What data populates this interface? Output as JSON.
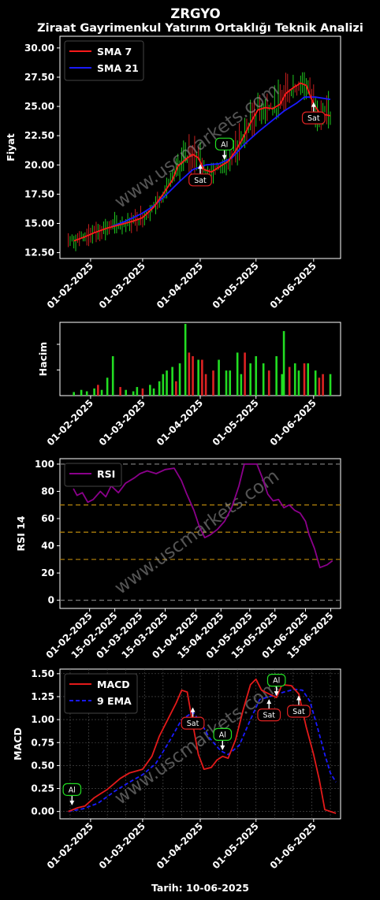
{
  "header": {
    "ticker": "ZRGYO",
    "subtitle": "Ziraat Gayrimenkul Yatırım Ortaklığı Teknik Analizi",
    "footer": "Tarih: 10-06-2025",
    "watermark": "www.uscmarkets.com"
  },
  "colors": {
    "background": "#000000",
    "sma7": "#ff1a1a",
    "sma21": "#1a1aff",
    "rsi": "#8b008b",
    "macd": "#e31a1a",
    "ema9": "#1a1aff",
    "up": "#22dd22",
    "down": "#dd2222",
    "buy": "#22dd22",
    "sell": "#dd2222"
  },
  "chart_data": [
    {
      "type": "line",
      "panel": "price",
      "ylabel": "Fiyat",
      "ylim": [
        12.0,
        31.0
      ],
      "yticks": [
        "12.50",
        "15.00",
        "17.50",
        "20.00",
        "22.50",
        "25.00",
        "27.50",
        "30.00"
      ],
      "xticks": [
        "01-02-2025",
        "01-03-2025",
        "01-04-2025",
        "01-05-2025",
        "01-06-2025"
      ],
      "legend": "top-left",
      "candle_volatility": "daily high/low bars shown in green/red",
      "series": [
        {
          "name": "SMA 7",
          "points": [
            [
              "2025-01-23",
              13.5
            ],
            [
              "2025-01-28",
              13.8
            ],
            [
              "2025-02-03",
              14.2
            ],
            [
              "2025-02-10",
              14.6
            ],
            [
              "2025-02-17",
              14.9
            ],
            [
              "2025-02-24",
              15.2
            ],
            [
              "2025-03-01",
              15.5
            ],
            [
              "2025-03-07",
              16.4
            ],
            [
              "2025-03-12",
              17.5
            ],
            [
              "2025-03-17",
              18.7
            ],
            [
              "2025-03-20",
              19.9
            ],
            [
              "2025-03-25",
              20.6
            ],
            [
              "2025-03-28",
              20.9
            ],
            [
              "2025-03-31",
              20.6
            ],
            [
              "2025-04-03",
              19.6
            ],
            [
              "2025-04-07",
              19.4
            ],
            [
              "2025-04-12",
              19.9
            ],
            [
              "2025-04-16",
              20.3
            ],
            [
              "2025-04-20",
              21.2
            ],
            [
              "2025-04-24",
              22.3
            ],
            [
              "2025-04-28",
              23.6
            ],
            [
              "2025-05-02",
              24.7
            ],
            [
              "2025-05-06",
              24.9
            ],
            [
              "2025-05-10",
              24.8
            ],
            [
              "2025-05-14",
              25.2
            ],
            [
              "2025-05-17",
              26.1
            ],
            [
              "2025-05-21",
              26.6
            ],
            [
              "2025-05-25",
              27.0
            ],
            [
              "2025-05-28",
              26.8
            ],
            [
              "2025-06-01",
              25.2
            ],
            [
              "2025-06-04",
              24.5
            ],
            [
              "2025-06-07",
              24.3
            ],
            [
              "2025-06-10",
              24.2
            ]
          ]
        },
        {
          "name": "SMA 21",
          "points": [
            [
              "2025-02-12",
              14.7
            ],
            [
              "2025-02-20",
              15.2
            ],
            [
              "2025-02-28",
              15.8
            ],
            [
              "2025-03-07",
              16.5
            ],
            [
              "2025-03-14",
              17.5
            ],
            [
              "2025-03-21",
              18.6
            ],
            [
              "2025-03-28",
              19.6
            ],
            [
              "2025-04-04",
              20.0
            ],
            [
              "2025-04-11",
              20.1
            ],
            [
              "2025-04-18",
              20.6
            ],
            [
              "2025-04-25",
              21.8
            ],
            [
              "2025-05-02",
              22.8
            ],
            [
              "2025-05-09",
              23.7
            ],
            [
              "2025-05-16",
              24.6
            ],
            [
              "2025-05-23",
              25.3
            ],
            [
              "2025-05-27",
              25.8
            ],
            [
              "2025-06-02",
              25.8
            ],
            [
              "2025-06-10",
              25.6
            ]
          ]
        }
      ],
      "annotations": [
        {
          "label": "Sat",
          "signal": "sell",
          "date": "2025-04-01",
          "y": 20.2
        },
        {
          "label": "Al",
          "signal": "buy",
          "date": "2025-04-14",
          "y": 20.3
        },
        {
          "label": "Sat",
          "signal": "sell",
          "date": "2025-06-01",
          "y": 25.5
        }
      ]
    },
    {
      "type": "bar",
      "panel": "volume",
      "ylabel": "Hacim",
      "xticks": [
        "01-02-2025",
        "01-03-2025",
        "01-04-2025",
        "01-05-2025",
        "01-06-2025"
      ],
      "y_units": "relative (0-1 of panel max)",
      "bars": [
        [
          "2025-01-23",
          0.05,
          "up"
        ],
        [
          "2025-01-27",
          0.08,
          "up"
        ],
        [
          "2025-01-30",
          0.06,
          "up"
        ],
        [
          "2025-02-03",
          0.1,
          "up"
        ],
        [
          "2025-02-05",
          0.15,
          "down"
        ],
        [
          "2025-02-07",
          0.08,
          "up"
        ],
        [
          "2025-02-10",
          0.25,
          "up"
        ],
        [
          "2025-02-13",
          0.55,
          "up"
        ],
        [
          "2025-02-17",
          0.12,
          "down"
        ],
        [
          "2025-02-20",
          0.08,
          "up"
        ],
        [
          "2025-02-24",
          0.06,
          "up"
        ],
        [
          "2025-02-26",
          0.12,
          "up"
        ],
        [
          "2025-03-01",
          0.1,
          "down"
        ],
        [
          "2025-03-05",
          0.15,
          "up"
        ],
        [
          "2025-03-07",
          0.1,
          "up"
        ],
        [
          "2025-03-10",
          0.2,
          "up"
        ],
        [
          "2025-03-12",
          0.3,
          "up"
        ],
        [
          "2025-03-14",
          0.35,
          "up"
        ],
        [
          "2025-03-17",
          0.4,
          "up"
        ],
        [
          "2025-03-19",
          0.2,
          "down"
        ],
        [
          "2025-03-21",
          0.45,
          "up"
        ],
        [
          "2025-03-24",
          1.0,
          "up"
        ],
        [
          "2025-03-26",
          0.6,
          "down"
        ],
        [
          "2025-03-28",
          0.55,
          "down"
        ],
        [
          "2025-03-31",
          0.5,
          "up"
        ],
        [
          "2025-04-02",
          0.5,
          "down"
        ],
        [
          "2025-04-04",
          0.3,
          "down"
        ],
        [
          "2025-04-08",
          0.35,
          "down"
        ],
        [
          "2025-04-11",
          0.5,
          "up"
        ],
        [
          "2025-04-15",
          0.35,
          "up"
        ],
        [
          "2025-04-17",
          0.35,
          "up"
        ],
        [
          "2025-04-21",
          0.6,
          "up"
        ],
        [
          "2025-04-23",
          0.3,
          "up"
        ],
        [
          "2025-04-25",
          0.6,
          "down"
        ],
        [
          "2025-04-28",
          0.45,
          "up"
        ],
        [
          "2025-05-01",
          0.55,
          "up"
        ],
        [
          "2025-05-05",
          0.45,
          "up"
        ],
        [
          "2025-05-08",
          0.35,
          "down"
        ],
        [
          "2025-05-12",
          0.55,
          "up"
        ],
        [
          "2025-05-15",
          0.3,
          "up"
        ],
        [
          "2025-05-16",
          0.9,
          "up"
        ],
        [
          "2025-05-19",
          0.4,
          "down"
        ],
        [
          "2025-05-22",
          0.45,
          "up"
        ],
        [
          "2025-05-24",
          0.35,
          "up"
        ],
        [
          "2025-05-27",
          0.45,
          "down"
        ],
        [
          "2025-05-29",
          0.45,
          "up"
        ],
        [
          "2025-06-02",
          0.35,
          "up"
        ],
        [
          "2025-06-04",
          0.25,
          "down"
        ],
        [
          "2025-06-06",
          0.3,
          "down"
        ],
        [
          "2025-06-10",
          0.3,
          "up"
        ]
      ]
    },
    {
      "type": "line",
      "panel": "rsi",
      "ylabel": "RSI 14",
      "ylim": [
        -6,
        104
      ],
      "yticks": [
        "0",
        "20",
        "40",
        "60",
        "80",
        "100"
      ],
      "hlines": [
        0,
        30,
        50,
        70,
        100
      ],
      "xticks": [
        "01-02-2025",
        "15-02-2025",
        "01-03-2025",
        "15-03-2025",
        "01-04-2025",
        "15-04-2025",
        "01-05-2025",
        "15-05-2025",
        "01-06-2025",
        "15-06-2025"
      ],
      "legend": "top-left",
      "series": [
        {
          "name": "RSI",
          "points": [
            [
              "2025-01-23",
              82
            ],
            [
              "2025-01-25",
              77
            ],
            [
              "2025-01-28",
              79
            ],
            [
              "2025-01-31",
              72
            ],
            [
              "2025-02-03",
              74
            ],
            [
              "2025-02-07",
              80
            ],
            [
              "2025-02-10",
              76
            ],
            [
              "2025-02-13",
              84
            ],
            [
              "2025-02-17",
              79
            ],
            [
              "2025-02-21",
              86
            ],
            [
              "2025-02-26",
              90
            ],
            [
              "2025-03-01",
              93
            ],
            [
              "2025-03-05",
              95
            ],
            [
              "2025-03-10",
              93
            ],
            [
              "2025-03-15",
              96
            ],
            [
              "2025-03-20",
              97
            ],
            [
              "2025-03-24",
              88
            ],
            [
              "2025-03-27",
              78
            ],
            [
              "2025-03-31",
              66
            ],
            [
              "2025-04-03",
              54
            ],
            [
              "2025-04-06",
              46
            ],
            [
              "2025-04-09",
              48
            ],
            [
              "2025-04-13",
              52
            ],
            [
              "2025-04-17",
              58
            ],
            [
              "2025-04-21",
              68
            ],
            [
              "2025-04-25",
              84
            ],
            [
              "2025-04-28",
              100
            ],
            [
              "2025-05-02",
              100
            ],
            [
              "2025-05-05",
              100
            ],
            [
              "2025-05-08",
              90
            ],
            [
              "2025-05-11",
              78
            ],
            [
              "2025-05-14",
              73
            ],
            [
              "2025-05-17",
              74
            ],
            [
              "2025-05-20",
              68
            ],
            [
              "2025-05-23",
              70
            ],
            [
              "2025-05-26",
              66
            ],
            [
              "2025-05-29",
              64
            ],
            [
              "2025-06-01",
              58
            ],
            [
              "2025-06-03",
              48
            ],
            [
              "2025-06-06",
              38
            ],
            [
              "2025-06-09",
              24
            ],
            [
              "2025-06-13",
              26
            ],
            [
              "2025-06-16",
              29
            ]
          ]
        }
      ]
    },
    {
      "type": "line",
      "panel": "macd",
      "ylabel": "MACD",
      "ylim": [
        -0.08,
        1.55
      ],
      "yticks": [
        "0.00",
        "0.25",
        "0.50",
        "0.75",
        "1.00",
        "1.25",
        "1.50"
      ],
      "xticks": [
        "01-02-2025",
        "01-03-2025",
        "01-04-2025",
        "01-05-2025",
        "01-06-2025"
      ],
      "legend": "top-left",
      "series": [
        {
          "name": "MACD",
          "points": [
            [
              "2025-01-20",
              0.0
            ],
            [
              "2025-01-25",
              0.04
            ],
            [
              "2025-01-29",
              0.06
            ],
            [
              "2025-02-03",
              0.15
            ],
            [
              "2025-02-10",
              0.24
            ],
            [
              "2025-02-17",
              0.36
            ],
            [
              "2025-02-22",
              0.42
            ],
            [
              "2025-03-01",
              0.46
            ],
            [
              "2025-03-06",
              0.6
            ],
            [
              "2025-03-10",
              0.82
            ],
            [
              "2025-03-15",
              1.02
            ],
            [
              "2025-03-19",
              1.18
            ],
            [
              "2025-03-22",
              1.32
            ],
            [
              "2025-03-25",
              1.3
            ],
            [
              "2025-03-28",
              0.95
            ],
            [
              "2025-03-31",
              0.62
            ],
            [
              "2025-04-03",
              0.46
            ],
            [
              "2025-04-07",
              0.48
            ],
            [
              "2025-04-10",
              0.56
            ],
            [
              "2025-04-13",
              0.6
            ],
            [
              "2025-04-16",
              0.58
            ],
            [
              "2025-04-20",
              0.78
            ],
            [
              "2025-04-24",
              1.1
            ],
            [
              "2025-04-28",
              1.38
            ],
            [
              "2025-05-01",
              1.44
            ],
            [
              "2025-05-04",
              1.32
            ],
            [
              "2025-05-08",
              1.28
            ],
            [
              "2025-05-12",
              1.24
            ],
            [
              "2025-05-15",
              1.38
            ],
            [
              "2025-05-20",
              1.37
            ],
            [
              "2025-05-24",
              1.28
            ],
            [
              "2025-05-28",
              0.92
            ],
            [
              "2025-06-01",
              0.62
            ],
            [
              "2025-06-04",
              0.35
            ],
            [
              "2025-06-07",
              0.02
            ],
            [
              "2025-06-13",
              -0.02
            ]
          ]
        },
        {
          "name": "9 EMA",
          "points": [
            [
              "2025-01-20",
              0.0
            ],
            [
              "2025-01-28",
              0.03
            ],
            [
              "2025-02-05",
              0.09
            ],
            [
              "2025-02-14",
              0.22
            ],
            [
              "2025-02-22",
              0.32
            ],
            [
              "2025-03-01",
              0.4
            ],
            [
              "2025-03-08",
              0.52
            ],
            [
              "2025-03-15",
              0.75
            ],
            [
              "2025-03-22",
              1.0
            ],
            [
              "2025-03-28",
              1.08
            ],
            [
              "2025-04-01",
              0.98
            ],
            [
              "2025-04-06",
              0.8
            ],
            [
              "2025-04-12",
              0.66
            ],
            [
              "2025-04-16",
              0.62
            ],
            [
              "2025-04-22",
              0.72
            ],
            [
              "2025-04-28",
              1.0
            ],
            [
              "2025-05-03",
              1.22
            ],
            [
              "2025-05-10",
              1.26
            ],
            [
              "2025-05-16",
              1.3
            ],
            [
              "2025-05-22",
              1.33
            ],
            [
              "2025-05-26",
              1.32
            ],
            [
              "2025-05-30",
              1.2
            ],
            [
              "2025-06-03",
              0.92
            ],
            [
              "2025-06-07",
              0.62
            ],
            [
              "2025-06-10",
              0.42
            ],
            [
              "2025-06-13",
              0.32
            ]
          ]
        }
      ],
      "annotations": [
        {
          "label": "Al",
          "signal": "buy",
          "date": "2025-01-22",
          "y": 0.05
        },
        {
          "label": "Sat",
          "signal": "sell",
          "date": "2025-03-28",
          "y": 1.15
        },
        {
          "label": "Al",
          "signal": "buy",
          "date": "2025-04-13",
          "y": 0.65
        },
        {
          "label": "Sat",
          "signal": "sell",
          "date": "2025-05-08",
          "y": 1.24
        },
        {
          "label": "Al",
          "signal": "buy",
          "date": "2025-05-12",
          "y": 1.24
        },
        {
          "label": "Sat",
          "signal": "sell",
          "date": "2025-05-24",
          "y": 1.28
        }
      ]
    }
  ]
}
